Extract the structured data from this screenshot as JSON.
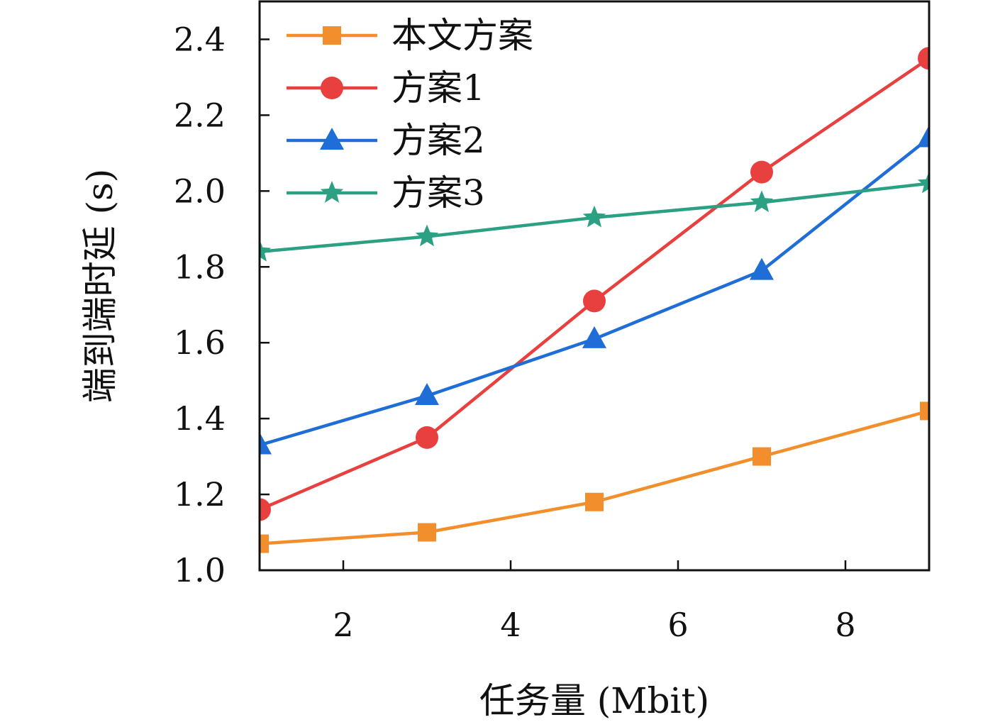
{
  "chart_data": {
    "type": "line",
    "xlabel": "任务量 (Mbit)",
    "ylabel": "端到端时延 (s)",
    "xlim": [
      1,
      9
    ],
    "ylim": [
      1.0,
      2.5
    ],
    "xticks": [
      2,
      4,
      6,
      8
    ],
    "yticks": [
      1.0,
      1.2,
      1.4,
      1.6,
      1.8,
      2.0,
      2.2,
      2.4
    ],
    "x": [
      1,
      3,
      5,
      7,
      9
    ],
    "legend_position": "top-left",
    "grid": false,
    "series": [
      {
        "name": "本文方案",
        "values": [
          1.07,
          1.1,
          1.18,
          1.3,
          1.42
        ],
        "color": "#f28e2b",
        "marker": "square"
      },
      {
        "name": "方案1",
        "values": [
          1.16,
          1.35,
          1.71,
          2.05,
          2.35
        ],
        "color": "#e8403f",
        "marker": "circle"
      },
      {
        "name": "方案2",
        "values": [
          1.33,
          1.46,
          1.61,
          1.79,
          2.14
        ],
        "color": "#1f6dd6",
        "marker": "triangle"
      },
      {
        "name": "方案3",
        "values": [
          1.84,
          1.88,
          1.93,
          1.97,
          2.02
        ],
        "color": "#2ca083",
        "marker": "star"
      }
    ]
  }
}
